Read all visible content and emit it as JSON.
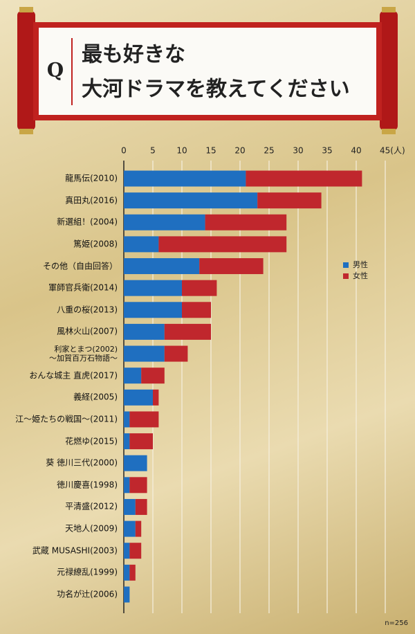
{
  "chart_data": {
    "type": "stacked-bar-horizontal",
    "question_mark": "Q",
    "title": [
      "最も好きな",
      "大河ドラマを教えてください"
    ],
    "categories": [
      "龍馬伝(2010)",
      "真田丸(2016)",
      "新選組！(2004)",
      "篤姫(2008)",
      "その他（自由回答）",
      "軍師官兵衛(2014)",
      "八重の桜(2013)",
      "風林火山(2007)",
      "利家とまつ(2002)\n～加賀百万石物語～",
      "おんな城主 直虎(2017)",
      "義経(2005)",
      "江～姫たちの戦国～(2011)",
      "花燃ゆ(2015)",
      "葵 徳川三代(2000)",
      "徳川慶喜(1998)",
      "平清盛(2012)",
      "天地人(2009)",
      "武蔵 MUSASHI(2003)",
      "元禄繚乱(1999)",
      "功名が辻(2006)"
    ],
    "series": [
      {
        "name": "男性",
        "color": "#1f6fc0",
        "values": [
          21,
          23,
          14,
          6,
          13,
          10,
          10,
          7,
          7,
          3,
          5,
          1,
          1,
          4,
          1,
          2,
          2,
          1,
          1,
          1
        ]
      },
      {
        "name": "女性",
        "color": "#c0272d",
        "values": [
          20,
          11,
          14,
          22,
          11,
          6,
          5,
          8,
          4,
          4,
          1,
          5,
          4,
          0,
          3,
          2,
          1,
          2,
          1,
          0
        ]
      }
    ],
    "xlim": [
      0,
      45
    ],
    "xticks": [
      0,
      5,
      10,
      15,
      20,
      25,
      30,
      35,
      40,
      {
        "value": 45,
        "label": "45(人)"
      }
    ],
    "grid": true,
    "legend": "right",
    "note": "n=256"
  }
}
